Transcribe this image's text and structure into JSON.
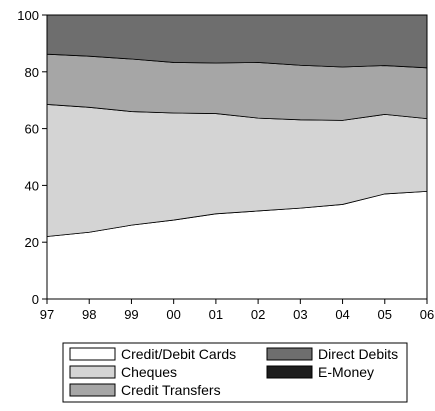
{
  "chart_data": {
    "type": "area",
    "stacked": true,
    "title": "",
    "xlabel": "",
    "ylabel": "",
    "x": [
      "97",
      "98",
      "99",
      "00",
      "01",
      "02",
      "03",
      "04",
      "05",
      "06"
    ],
    "ylim": [
      0,
      100
    ],
    "yticks": [
      0,
      20,
      40,
      60,
      80,
      100
    ],
    "grid": false,
    "legend_placement": "bottom",
    "series": [
      {
        "name": "Credit/Debit Cards",
        "color": "#ffffff",
        "values": [
          22.0,
          23.5,
          26.0,
          27.8,
          30.0,
          31.0,
          32.0,
          33.3,
          37.0,
          37.9
        ]
      },
      {
        "name": "Cheques",
        "color": "#d4d4d4",
        "values": [
          46.5,
          44.0,
          40.0,
          37.7,
          35.3,
          32.7,
          31.1,
          29.6,
          28.0,
          25.6
        ]
      },
      {
        "name": "Credit Transfers",
        "color": "#a6a6a6",
        "values": [
          17.7,
          18.0,
          18.5,
          17.8,
          17.8,
          19.6,
          19.2,
          18.8,
          17.2,
          17.9
        ]
      },
      {
        "name": "Direct Debits",
        "color": "#6e6e6e",
        "values": [
          13.8,
          14.5,
          15.5,
          16.7,
          16.9,
          16.7,
          17.7,
          18.3,
          17.8,
          18.6
        ]
      },
      {
        "name": "E-Money",
        "color": "#1c1c1c",
        "values": [
          0,
          0,
          0,
          0,
          0,
          0,
          0,
          0,
          0,
          0
        ]
      }
    ]
  }
}
